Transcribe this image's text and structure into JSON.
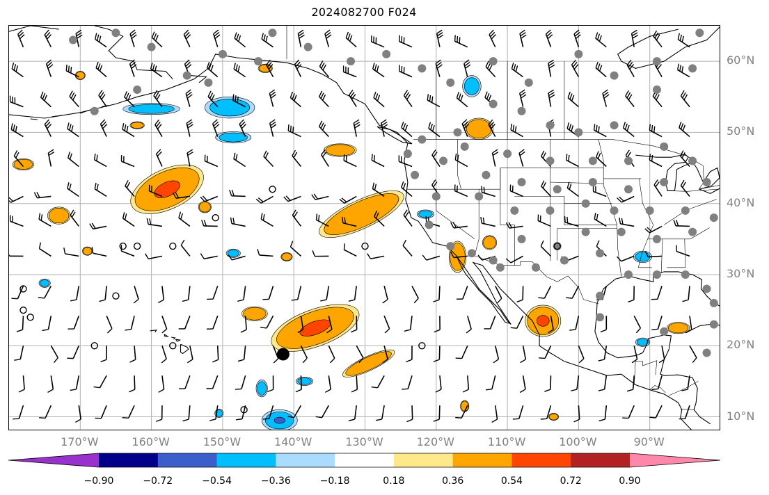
{
  "title": "2024082700 F024",
  "map": {
    "extent": {
      "lon_min": -180,
      "lon_max": -80,
      "lat_min": 8,
      "lat_max": 65
    },
    "lat_labels": [
      {
        "lat": 60,
        "text": "60°N"
      },
      {
        "lat": 50,
        "text": "50°N"
      },
      {
        "lat": 40,
        "text": "40°N"
      },
      {
        "lat": 30,
        "text": "30°N"
      },
      {
        "lat": 20,
        "text": "20°N"
      },
      {
        "lat": 10,
        "text": "10°N"
      }
    ],
    "lon_labels": [
      {
        "lon": -170,
        "text": "170°W"
      },
      {
        "lon": -160,
        "text": "160°W"
      },
      {
        "lon": -150,
        "text": "150°W"
      },
      {
        "lon": -140,
        "text": "140°W"
      },
      {
        "lon": -130,
        "text": "130°W"
      },
      {
        "lon": -120,
        "text": "120°W"
      },
      {
        "lon": -110,
        "text": "110°W"
      },
      {
        "lon": -100,
        "text": "100°W"
      },
      {
        "lon": -90,
        "text": "90°W"
      }
    ],
    "grid": true,
    "colors": {
      "grid": "#b0b0b0",
      "coast": "#000000",
      "station": "#808080",
      "barb": "#000000"
    },
    "wind_barbs": "drawn on a regular ~4° grid over the Pacific and North America",
    "anomaly_regions": [
      {
        "lon": -157.8,
        "lat": 42.0,
        "rx": 5.5,
        "ry": 2.8,
        "rot": 25,
        "max_level": 0.72
      },
      {
        "lon": -130.5,
        "lat": 38.5,
        "rx": 6.5,
        "ry": 2.0,
        "rot": 25,
        "max_level": 0.54
      },
      {
        "lon": -137.0,
        "lat": 22.5,
        "rx": 6.5,
        "ry": 2.6,
        "rot": 20,
        "max_level": 0.72
      },
      {
        "lon": -129.5,
        "lat": 17.5,
        "rx": 4.0,
        "ry": 1.0,
        "rot": 25,
        "max_level": 0.54
      },
      {
        "lon": -105.0,
        "lat": 23.5,
        "rx": 2.5,
        "ry": 2.2,
        "rot": 0,
        "max_level": 0.72
      },
      {
        "lon": -114.0,
        "lat": 50.5,
        "rx": 2.0,
        "ry": 1.5,
        "rot": 0,
        "max_level": 0.54
      },
      {
        "lon": -133.5,
        "lat": 47.5,
        "rx": 2.3,
        "ry": 0.9,
        "rot": 0,
        "max_level": 0.54
      },
      {
        "lon": -173.0,
        "lat": 38.3,
        "rx": 1.6,
        "ry": 1.2,
        "rot": 0,
        "max_level": 0.54
      },
      {
        "lon": -178.0,
        "lat": 45.5,
        "rx": 1.5,
        "ry": 0.8,
        "rot": 0,
        "max_level": 0.36
      },
      {
        "lon": -145.5,
        "lat": 24.5,
        "rx": 1.8,
        "ry": 1.0,
        "rot": 0,
        "max_level": 0.36
      },
      {
        "lon": -117.0,
        "lat": 32.5,
        "rx": 1.2,
        "ry": 2.2,
        "rot": 0,
        "max_level": 0.36
      },
      {
        "lon": -152.5,
        "lat": 39.5,
        "rx": 0.9,
        "ry": 0.8,
        "rot": 0,
        "max_level": 0.36
      },
      {
        "lon": -141.0,
        "lat": 32.5,
        "rx": 0.8,
        "ry": 0.6,
        "rot": 0,
        "max_level": 0.36
      },
      {
        "lon": -112.5,
        "lat": 34.5,
        "rx": 1.0,
        "ry": 1.0,
        "rot": 0,
        "max_level": 0.36
      },
      {
        "lon": -103.5,
        "lat": 10.0,
        "rx": 0.7,
        "ry": 0.5,
        "rot": 0,
        "max_level": 0.36
      },
      {
        "lon": -116.0,
        "lat": 11.5,
        "rx": 0.6,
        "ry": 0.8,
        "rot": 0,
        "max_level": 0.36
      },
      {
        "lon": -86.0,
        "lat": 22.5,
        "rx": 1.6,
        "ry": 0.8,
        "rot": 0,
        "max_level": 0.36
      },
      {
        "lon": -169.0,
        "lat": 33.3,
        "rx": 0.7,
        "ry": 0.6,
        "rot": 0,
        "max_level": 0.36
      },
      {
        "lon": -170.0,
        "lat": 58.0,
        "rx": 0.7,
        "ry": 0.6,
        "rot": 0,
        "max_level": 0.36
      },
      {
        "lon": -144.0,
        "lat": 59.0,
        "rx": 1.0,
        "ry": 0.6,
        "rot": 0,
        "max_level": 0.36
      },
      {
        "lon": -162.0,
        "lat": 51.0,
        "rx": 1.0,
        "ry": 0.5,
        "rot": 0,
        "max_level": 0.36
      }
    ],
    "negative_regions": [
      {
        "lon": -149.0,
        "lat": 53.5,
        "rx": 3.5,
        "ry": 1.5,
        "rot": 0,
        "min_level": -0.36
      },
      {
        "lon": -160.0,
        "lat": 53.3,
        "rx": 4.0,
        "ry": 0.8,
        "rot": 0,
        "min_level": -0.36
      },
      {
        "lon": -148.5,
        "lat": 49.3,
        "rx": 2.5,
        "ry": 0.8,
        "rot": 0,
        "min_level": -0.36
      },
      {
        "lon": -142.0,
        "lat": 9.5,
        "rx": 2.5,
        "ry": 1.5,
        "rot": 0,
        "min_level": -0.54
      },
      {
        "lon": -138.5,
        "lat": 15.0,
        "rx": 1.2,
        "ry": 0.6,
        "rot": 0,
        "min_level": -0.36
      },
      {
        "lon": -144.5,
        "lat": 14.0,
        "rx": 0.8,
        "ry": 1.2,
        "rot": 0,
        "min_level": -0.36
      },
      {
        "lon": -115.0,
        "lat": 56.5,
        "rx": 1.3,
        "ry": 1.5,
        "rot": 0,
        "min_level": -0.36
      },
      {
        "lon": -91.0,
        "lat": 20.5,
        "rx": 1.0,
        "ry": 0.6,
        "rot": 0,
        "min_level": -0.36
      },
      {
        "lon": -150.5,
        "lat": 10.5,
        "rx": 0.6,
        "ry": 0.6,
        "rot": 0,
        "min_level": -0.36
      },
      {
        "lon": -148.5,
        "lat": 33.0,
        "rx": 1.0,
        "ry": 0.6,
        "rot": 0,
        "min_level": -0.36
      },
      {
        "lon": -175.0,
        "lat": 28.8,
        "rx": 0.8,
        "ry": 0.6,
        "rot": 0,
        "min_level": -0.36
      },
      {
        "lon": -121.5,
        "lat": 38.5,
        "rx": 1.2,
        "ry": 0.6,
        "rot": 0,
        "min_level": -0.36
      },
      {
        "lon": -91.0,
        "lat": 32.5,
        "rx": 1.3,
        "ry": 0.8,
        "rot": 0,
        "min_level": -0.36
      }
    ],
    "stations": [
      [
        -165,
        64
      ],
      [
        -171,
        63
      ],
      [
        -160,
        62
      ],
      [
        -150,
        61
      ],
      [
        -143,
        64
      ],
      [
        -138,
        62
      ],
      [
        -132,
        60
      ],
      [
        -127,
        61
      ],
      [
        -122,
        59
      ],
      [
        -118,
        57
      ],
      [
        -112,
        60
      ],
      [
        -107,
        57
      ],
      [
        -100,
        61
      ],
      [
        -95,
        58
      ],
      [
        -89,
        60
      ],
      [
        -84,
        59
      ],
      [
        -83,
        64
      ],
      [
        -89,
        56
      ],
      [
        -95,
        51
      ],
      [
        -100,
        50
      ],
      [
        -104,
        51
      ],
      [
        -108,
        53
      ],
      [
        -112,
        54
      ],
      [
        -117,
        50
      ],
      [
        -122,
        49
      ],
      [
        -124,
        47
      ],
      [
        -116,
        48
      ],
      [
        -110,
        47
      ],
      [
        -104,
        46
      ],
      [
        -98,
        46
      ],
      [
        -93,
        46
      ],
      [
        -88,
        48
      ],
      [
        -84,
        46
      ],
      [
        -82,
        43
      ],
      [
        -88,
        43
      ],
      [
        -93,
        42
      ],
      [
        -98,
        43
      ],
      [
        -103,
        42
      ],
      [
        -108,
        43
      ],
      [
        -113,
        44
      ],
      [
        -119,
        46
      ],
      [
        -123,
        44
      ],
      [
        -120,
        41
      ],
      [
        -114,
        41
      ],
      [
        -109,
        39
      ],
      [
        -104,
        39
      ],
      [
        -99,
        40
      ],
      [
        -95,
        39
      ],
      [
        -90,
        39
      ],
      [
        -85,
        39
      ],
      [
        -81,
        38
      ],
      [
        -84,
        36
      ],
      [
        -89,
        35
      ],
      [
        -94,
        36
      ],
      [
        -99,
        36
      ],
      [
        -103,
        34
      ],
      [
        -108,
        35
      ],
      [
        -112,
        32
      ],
      [
        -115,
        33
      ],
      [
        -118,
        34
      ],
      [
        -121,
        37
      ],
      [
        -111,
        31
      ],
      [
        -106,
        31
      ],
      [
        -102,
        32
      ],
      [
        -97,
        33
      ],
      [
        -93,
        30
      ],
      [
        -89,
        30
      ],
      [
        -85,
        30
      ],
      [
        -82,
        28
      ],
      [
        -81,
        26
      ],
      [
        -97,
        27
      ],
      [
        -97,
        24
      ],
      [
        -81,
        23
      ],
      [
        -82,
        19
      ],
      [
        -88,
        22
      ],
      [
        -168,
        53
      ],
      [
        -162,
        56
      ],
      [
        -155,
        58
      ],
      [
        -145,
        60
      ],
      [
        -152,
        57
      ]
    ],
    "stations_open": [
      [
        -162,
        34
      ],
      [
        -165,
        27
      ],
      [
        -168,
        20
      ],
      [
        -164,
        34
      ],
      [
        -157,
        34
      ],
      [
        -157,
        20
      ],
      [
        -151,
        38
      ],
      [
        -143,
        42
      ],
      [
        -147,
        11
      ],
      [
        -130,
        34
      ],
      [
        -122,
        20
      ],
      [
        -178,
        28
      ],
      [
        -178,
        25
      ],
      [
        -103,
        34
      ],
      [
        -177,
        24
      ]
    ],
    "marker": {
      "lon": -141.5,
      "lat": 18.8
    }
  },
  "colorbar": {
    "bins": [
      "#9932cc",
      "#00008b",
      "#3a5fcd",
      "#00bfff",
      "#aadcff",
      "#ffffff",
      "#ffe88a",
      "#ffa500",
      "#ff4500",
      "#b22222",
      "#ff88aa"
    ],
    "labels": [
      "−0.90",
      "−0.72",
      "−0.54",
      "−0.36",
      "−0.18",
      "0.18",
      "0.36",
      "0.54",
      "0.72",
      "0.90"
    ]
  }
}
